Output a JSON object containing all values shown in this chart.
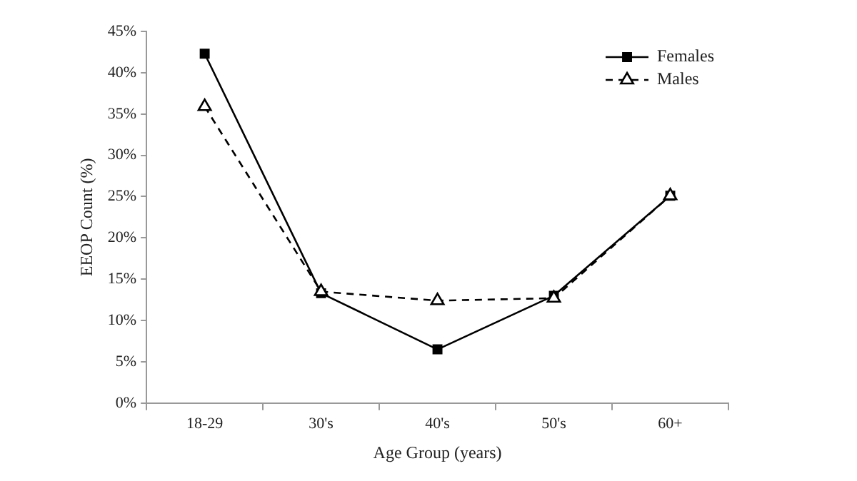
{
  "chart_data": {
    "type": "line",
    "xlabel": "Age Group (years)",
    "ylabel": "EEOP Count (%)",
    "categories": [
      "18-29",
      "30's",
      "40's",
      "50's",
      "60+"
    ],
    "series": [
      {
        "name": "Females",
        "color": "#000000",
        "values": [
          42.3,
          13.3,
          6.5,
          13.0,
          25.1
        ],
        "marker": "square",
        "line_style": "solid"
      },
      {
        "name": "Males",
        "color": "#000000",
        "values": [
          35.9,
          13.5,
          12.4,
          12.7,
          25.1
        ],
        "marker": "triangle",
        "line_style": "dashed"
      }
    ],
    "ylim": [
      0,
      45
    ],
    "yticks": [
      {
        "value": 0,
        "label": "0%"
      },
      {
        "value": 5,
        "label": "5%"
      },
      {
        "value": 10,
        "label": "10%"
      },
      {
        "value": 15,
        "label": "15%"
      },
      {
        "value": 20,
        "label": "20%"
      },
      {
        "value": 25,
        "label": "25%"
      },
      {
        "value": 30,
        "label": "30%"
      },
      {
        "value": 35,
        "label": "35%"
      },
      {
        "value": 40,
        "label": "40%"
      },
      {
        "value": 45,
        "label": "45%"
      }
    ],
    "grid": false,
    "legend": "top right"
  }
}
